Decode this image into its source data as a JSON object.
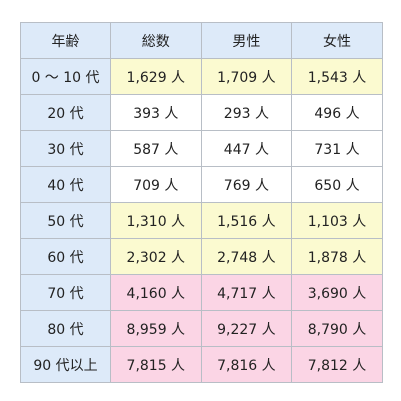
{
  "table": {
    "headers": [
      "年齢",
      "総数",
      "男性",
      "女性"
    ],
    "colors": {
      "header_bg": "#ddeaf9",
      "age_bg": "#ddeaf9",
      "white": "#ffffff",
      "yellow": "#fbfad0",
      "pink": "#fbd5e5",
      "border": "#b8bec6"
    },
    "rows": [
      {
        "age": "0 ～ 10 代",
        "total": "1,629 人",
        "male": "1,709 人",
        "female": "1,543 人",
        "highlight": "yellow"
      },
      {
        "age": "20 代",
        "total": "393 人",
        "male": "293 人",
        "female": "496 人",
        "highlight": "white"
      },
      {
        "age": "30 代",
        "total": "587 人",
        "male": "447 人",
        "female": "731 人",
        "highlight": "white"
      },
      {
        "age": "40 代",
        "total": "709 人",
        "male": "769 人",
        "female": "650 人",
        "highlight": "white"
      },
      {
        "age": "50 代",
        "total": "1,310 人",
        "male": "1,516 人",
        "female": "1,103 人",
        "highlight": "yellow"
      },
      {
        "age": "60 代",
        "total": "2,302 人",
        "male": "2,748 人",
        "female": "1,878 人",
        "highlight": "yellow"
      },
      {
        "age": "70 代",
        "total": "4,160 人",
        "male": "4,717 人",
        "female": "3,690 人",
        "highlight": "pink"
      },
      {
        "age": "80 代",
        "total": "8,959 人",
        "male": "9,227 人",
        "female": "8,790 人",
        "highlight": "pink"
      },
      {
        "age": "90 代以上",
        "total": "7,815 人",
        "male": "7,816 人",
        "female": "7,812 人",
        "highlight": "pink"
      }
    ]
  }
}
